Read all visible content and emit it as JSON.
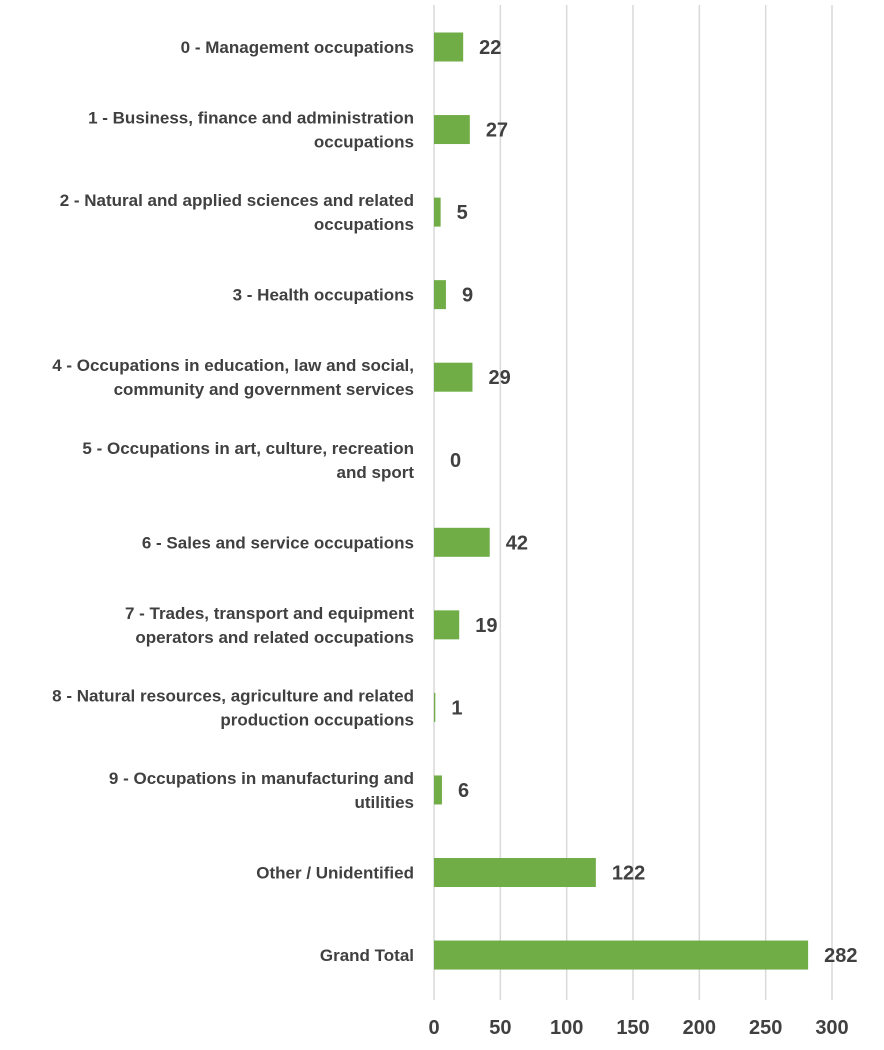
{
  "chart_data": {
    "type": "bar",
    "orientation": "horizontal",
    "categories": [
      "0 - Management occupations",
      "1 - Business, finance and administration occupations",
      "2 - Natural and applied sciences and related occupations",
      "3 - Health occupations",
      "4 - Occupations in education, law and social, community and government services",
      "5 - Occupations in art, culture, recreation and sport",
      "6 - Sales and service occupations",
      "7 - Trades, transport and equipment operators and related occupations",
      "8 - Natural resources, agriculture and related production occupations",
      "9 - Occupations in manufacturing and utilities",
      "Other / Unidentified",
      "Grand Total"
    ],
    "category_label_lines": [
      [
        "0 - Management occupations"
      ],
      [
        "1 - Business, finance and administration",
        "occupations"
      ],
      [
        "2 - Natural and applied sciences and related",
        "occupations"
      ],
      [
        "3 - Health occupations"
      ],
      [
        "4 - Occupations in education, law and social,",
        "community and government services"
      ],
      [
        "5 - Occupations in art, culture, recreation",
        "and sport"
      ],
      [
        "6 - Sales and service occupations"
      ],
      [
        "7 - Trades, transport and equipment",
        "operators and related occupations"
      ],
      [
        "8 - Natural resources, agriculture and related",
        "production occupations"
      ],
      [
        "9 - Occupations in manufacturing and",
        "utilities"
      ],
      [
        "Other / Unidentified"
      ],
      [
        "Grand Total"
      ]
    ],
    "values": [
      22,
      27,
      5,
      9,
      29,
      0,
      42,
      19,
      1,
      6,
      122,
      282
    ],
    "xlim": [
      0,
      300
    ],
    "x_ticks": [
      0,
      50,
      100,
      150,
      200,
      250,
      300
    ],
    "title": "",
    "xlabel": "",
    "ylabel": "",
    "grid": true,
    "legend": "none",
    "data_labels": true,
    "bar_color": "#70ad47",
    "grid_color": "#d9d9d9",
    "text_color": "#404040"
  }
}
